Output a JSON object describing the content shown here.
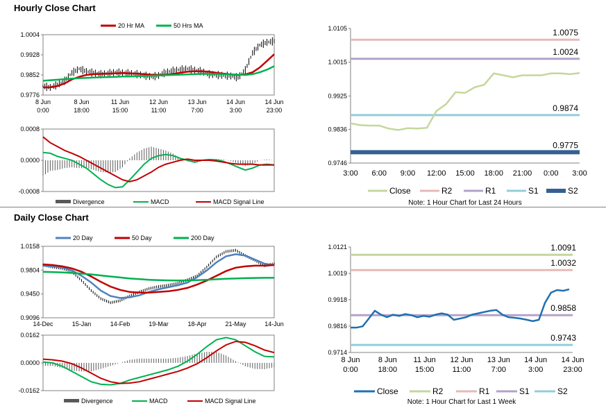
{
  "sections": {
    "hourly_title": "Hourly Close Chart",
    "daily_title": "Daily Close Chart"
  },
  "colors": {
    "ma_red": "#c00000",
    "ma_green": "#00b050",
    "ma_blue": "#4f81bd",
    "close_green": "#c4d79b",
    "r2": "#e6b9b8",
    "r1": "#b3a2c7",
    "s1": "#92cddc",
    "s2": "#366092",
    "close_blue": "#1f6fb0",
    "r2_daily": "#c4d79b",
    "r1_daily": "#e6b9b8",
    "s1_daily": "#b3a2c7",
    "s2_daily": "#92cddc"
  },
  "chart_data": [
    {
      "id": "hourly-price",
      "type": "line",
      "legend": [
        "20 Hr MA",
        "50 Hrs MA"
      ],
      "yticks": [
        "1.0004",
        "0.9928",
        "0.9852",
        "0.9776"
      ],
      "ylim": [
        0.9776,
        1.0004
      ],
      "xticks": [
        [
          "8 Jun",
          "0:00"
        ],
        [
          "8 Jun",
          "18:00"
        ],
        [
          "11 Jun",
          "15:00"
        ],
        [
          "12 Jun",
          "11:00"
        ],
        [
          "13 Jun",
          "7:00"
        ],
        [
          "14 Jun",
          "3:00"
        ],
        [
          "14 Jun",
          "23:00"
        ]
      ],
      "series": [
        {
          "name": "Close",
          "values": [
            0.981,
            0.9805,
            0.9815,
            0.983,
            0.986,
            0.9875,
            0.9865,
            0.986,
            0.9855,
            0.9858,
            0.9862,
            0.986,
            0.9858,
            0.9855,
            0.985,
            0.9845,
            0.985,
            0.9862,
            0.9868,
            0.9872,
            0.9875,
            0.987,
            0.9865,
            0.9855,
            0.9852,
            0.985,
            0.9848,
            0.9842,
            0.987,
            0.9935,
            0.9965,
            0.9975,
            0.998
          ]
        },
        {
          "name": "20 Hr MA",
          "values": [
            0.9805,
            0.9805,
            0.981,
            0.982,
            0.9835,
            0.9845,
            0.9852,
            0.9855,
            0.9856,
            0.9857,
            0.9858,
            0.9859,
            0.9858,
            0.9857,
            0.9855,
            0.9853,
            0.9852,
            0.9853,
            0.9856,
            0.986,
            0.9864,
            0.9866,
            0.9866,
            0.9864,
            0.986,
            0.9857,
            0.9854,
            0.9852,
            0.9854,
            0.9862,
            0.988,
            0.9905,
            0.993
          ]
        },
        {
          "name": "50 Hrs MA",
          "values": [
            0.983,
            0.9832,
            0.9834,
            0.9836,
            0.9838,
            0.984,
            0.9841,
            0.9842,
            0.9843,
            0.9844,
            0.9845,
            0.9846,
            0.9846,
            0.9847,
            0.9848,
            0.9849,
            0.985,
            0.9851,
            0.9852,
            0.9853,
            0.9854,
            0.9855,
            0.9856,
            0.9856,
            0.9856,
            0.9855,
            0.9854,
            0.9853,
            0.9852,
            0.9855,
            0.9862,
            0.9872,
            0.9885
          ]
        }
      ]
    },
    {
      "id": "hourly-macd",
      "type": "line",
      "legend": [
        "Divergence",
        "MACD",
        "MACD Signal Line"
      ],
      "yticks": [
        "0.0008",
        "0.0000",
        "-0.0008"
      ],
      "ylim": [
        -0.0008,
        0.0008
      ],
      "series": [
        {
          "name": "MACD",
          "values": [
            0.0002,
            0.00018,
            0.0001,
            5e-05,
            0.0,
            -0.0001,
            -0.0002,
            -0.00035,
            -0.0005,
            -0.00062,
            -0.0007,
            -0.00068,
            -0.0005,
            -0.0003,
            -0.0001,
            5e-05,
            0.00012,
            0.00015,
            0.00012,
            5e-05,
            0.0,
            -5e-05,
            0.0,
            2e-05,
            1e-05,
            -3e-05,
            -0.0001,
            -0.00018,
            -0.00025,
            -0.0002,
            -0.00012,
            -0.0001,
            -0.00012
          ]
        },
        {
          "name": "MACD Signal Line",
          "values": [
            0.0006,
            0.00045,
            0.00035,
            0.00025,
            0.00018,
            0.0001,
            0.0,
            -0.0001,
            -0.0002,
            -0.0003,
            -0.0004,
            -0.0005,
            -0.00055,
            -0.0005,
            -0.0004,
            -0.0003,
            -0.00018,
            -0.0001,
            -5e-05,
            0.0,
            3e-05,
            0.0,
            0.0,
            0.0,
            -2e-05,
            -5e-05,
            -8e-05,
            -0.0001,
            -0.0001,
            -0.0001,
            -0.00012,
            -0.00012,
            -0.00012
          ]
        }
      ]
    },
    {
      "id": "hourly-levels",
      "type": "line",
      "yticks": [
        "1.0105",
        "1.0015",
        "0.9925",
        "0.9836",
        "0.9746"
      ],
      "ylim": [
        0.9746,
        1.0105
      ],
      "xticks": [
        "3:00",
        "6:00",
        "9:00",
        "12:00",
        "15:00",
        "18:00",
        "21:00",
        "0:00",
        "3:00"
      ],
      "legend": [
        "Close",
        "R2",
        "R1",
        "S1",
        "S2"
      ],
      "note": "Note: 1 Hour Chart for Last 24 Hours",
      "levels": [
        {
          "name": "R2",
          "value": 1.0075,
          "label": "1.0075"
        },
        {
          "name": "R1",
          "value": 1.0024,
          "label": "1.0024"
        },
        {
          "name": "S1",
          "value": 0.9874,
          "label": "0.9874"
        },
        {
          "name": "S2",
          "value": 0.9775,
          "label": "0.9775"
        }
      ],
      "series": [
        {
          "name": "Close",
          "values": [
            0.9852,
            0.9847,
            0.9846,
            0.9846,
            0.9838,
            0.9834,
            0.9839,
            0.9838,
            0.984,
            0.9885,
            0.9903,
            0.9935,
            0.9933,
            0.9948,
            0.9955,
            0.9985,
            0.998,
            0.9975,
            0.998,
            0.998,
            0.998,
            0.9985,
            0.9985,
            0.9983,
            0.9986
          ]
        }
      ]
    },
    {
      "id": "daily-price",
      "type": "line",
      "legend": [
        "20 Day",
        "50 Day",
        "200 Day"
      ],
      "yticks": [
        "1.0158",
        "0.9804",
        "0.9450",
        "0.9096"
      ],
      "ylim": [
        0.9096,
        1.0158
      ],
      "xticks": [
        "14-Dec",
        "15-Jan",
        "14-Feb",
        "19-Mar",
        "18-Apr",
        "21-May",
        "14-Jun"
      ],
      "series": [
        {
          "name": "Close",
          "values": [
            0.988,
            0.985,
            0.983,
            0.978,
            0.965,
            0.95,
            0.938,
            0.932,
            0.935,
            0.942,
            0.948,
            0.953,
            0.956,
            0.958,
            0.961,
            0.966,
            0.972,
            0.985,
            1.0,
            1.008,
            1.01,
            1.002,
            0.995,
            0.987,
            0.99
          ]
        },
        {
          "name": "20 Day",
          "values": [
            0.987,
            0.986,
            0.984,
            0.98,
            0.972,
            0.962,
            0.95,
            0.942,
            0.939,
            0.94,
            0.943,
            0.948,
            0.952,
            0.955,
            0.958,
            0.962,
            0.97,
            0.98,
            0.992,
            1.001,
            1.004,
            1.002,
            0.996,
            0.99,
            0.988
          ]
        },
        {
          "name": "50 Day",
          "values": [
            0.989,
            0.988,
            0.986,
            0.983,
            0.978,
            0.971,
            0.963,
            0.956,
            0.951,
            0.948,
            0.947,
            0.947,
            0.948,
            0.949,
            0.951,
            0.954,
            0.959,
            0.965,
            0.972,
            0.979,
            0.984,
            0.986,
            0.987,
            0.987,
            0.988
          ]
        },
        {
          "name": "200 Day",
          "values": [
            0.978,
            0.9775,
            0.977,
            0.9762,
            0.9752,
            0.974,
            0.9725,
            0.971,
            0.9695,
            0.968,
            0.967,
            0.966,
            0.9655,
            0.9652,
            0.965,
            0.9652,
            0.9655,
            0.966,
            0.9668,
            0.9675,
            0.968,
            0.9685,
            0.9688,
            0.969,
            0.969
          ]
        }
      ]
    },
    {
      "id": "daily-macd",
      "type": "line",
      "legend": [
        "Divergence",
        "MACD",
        "MACD Signal Line"
      ],
      "yticks": [
        "0.0162",
        "0.0000",
        "-0.0162"
      ],
      "ylim": [
        -0.0162,
        0.0162
      ],
      "series": [
        {
          "name": "MACD",
          "values": [
            0.0005,
            0.0,
            -0.002,
            -0.005,
            -0.008,
            -0.011,
            -0.0125,
            -0.0128,
            -0.012,
            -0.01,
            -0.0085,
            -0.007,
            -0.0055,
            -0.004,
            -0.002,
            0.001,
            0.005,
            0.0095,
            0.0135,
            0.0148,
            0.0135,
            0.01,
            0.0065,
            0.0038,
            0.0035
          ]
        },
        {
          "name": "MACD Signal Line",
          "values": [
            0.0022,
            0.0018,
            0.001,
            -0.0005,
            -0.003,
            -0.006,
            -0.009,
            -0.011,
            -0.012,
            -0.0118,
            -0.011,
            -0.0095,
            -0.008,
            -0.0065,
            -0.005,
            -0.003,
            -0.0005,
            0.003,
            0.007,
            0.0105,
            0.0125,
            0.012,
            0.01,
            0.0075,
            0.006
          ]
        }
      ]
    },
    {
      "id": "daily-levels",
      "type": "line",
      "yticks": [
        "1.0121",
        "1.0019",
        "0.9918",
        "0.9816",
        "0.9714"
      ],
      "ylim": [
        0.9714,
        1.0121
      ],
      "xticks": [
        [
          "8 Jun",
          "0:00"
        ],
        [
          "8 Jun",
          "18:00"
        ],
        [
          "11 Jun",
          "15:00"
        ],
        [
          "12 Jun",
          "11:00"
        ],
        [
          "13 Jun",
          "7:00"
        ],
        [
          "14 Jun",
          "3:00"
        ],
        [
          "14 Jun",
          "23:00"
        ]
      ],
      "legend": [
        "Close",
        "R2",
        "R1",
        "S1",
        "S2"
      ],
      "note": "Note: 1 Hour Chart for Last 1 Week",
      "levels": [
        {
          "name": "R2",
          "value": 1.0091,
          "label": "1.0091"
        },
        {
          "name": "R1",
          "value": 1.0032,
          "label": "1.0032"
        },
        {
          "name": "S1",
          "value": 0.9858,
          "label": "0.9858"
        },
        {
          "name": "S2",
          "value": 0.9743,
          "label": "0.9743"
        }
      ],
      "series": [
        {
          "name": "Close",
          "values": [
            0.981,
            0.981,
            0.9815,
            0.9845,
            0.9875,
            0.986,
            0.985,
            0.986,
            0.9855,
            0.9862,
            0.9858,
            0.985,
            0.9855,
            0.9852,
            0.986,
            0.9865,
            0.986,
            0.984,
            0.9845,
            0.985,
            0.986,
            0.9865,
            0.987,
            0.9875,
            0.9878,
            0.986,
            0.985,
            0.9848,
            0.9845,
            0.984,
            0.9835,
            0.984,
            0.9905,
            0.9945,
            0.9955,
            0.9952,
            0.9958
          ]
        }
      ]
    }
  ]
}
